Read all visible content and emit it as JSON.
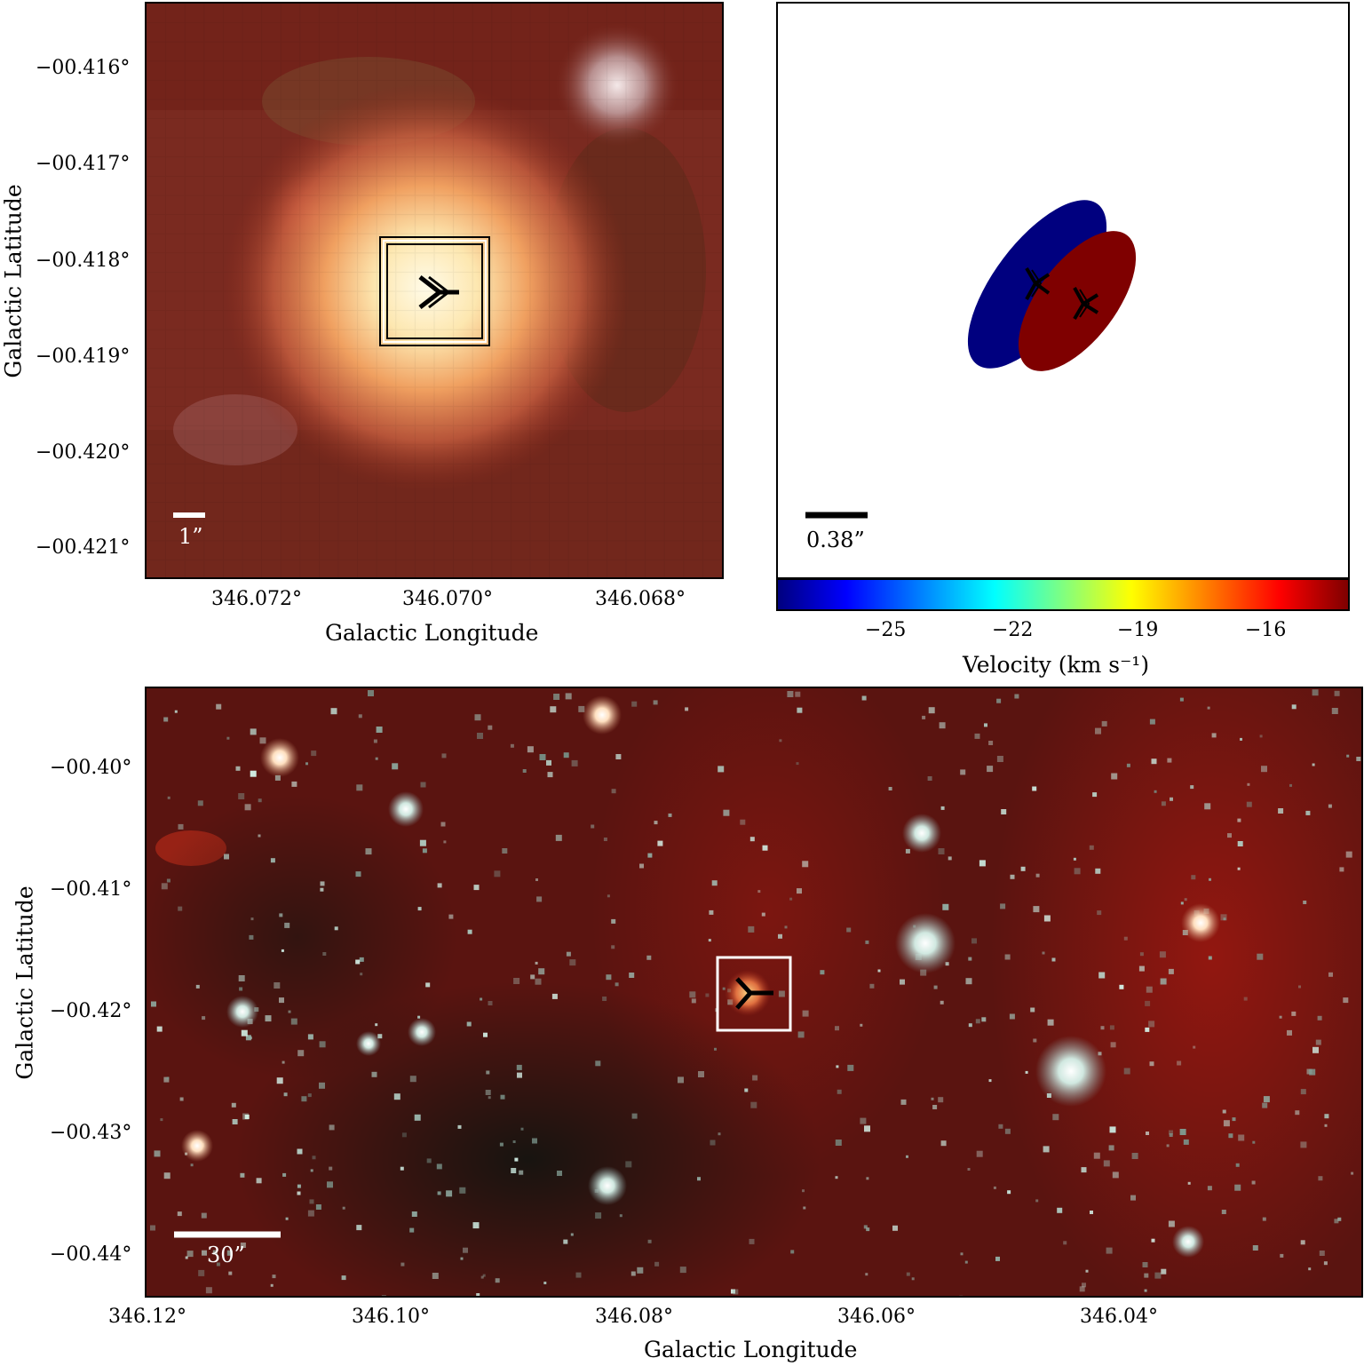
{
  "panel_a": {
    "y_ticks": [
      "−00.416°",
      "−00.417°",
      "−00.418°",
      "−00.419°",
      "−00.420°",
      "−00.421°"
    ],
    "x_ticks": [
      "346.072°",
      "346.070°",
      "346.068°"
    ],
    "xlabel": "Galactic Longitude",
    "ylabel": "Galactic Latitude",
    "scalebar": "1”"
  },
  "panel_b": {
    "scalebar": "0.38”",
    "colorbar_ticks": [
      "−25",
      "−22",
      "−19",
      "−16"
    ],
    "colorbar_label": "Velocity (km s⁻¹)",
    "ellipse_colors": [
      "#00007f",
      "#7f0000"
    ]
  },
  "panel_c": {
    "y_ticks": [
      "−00.40°",
      "−00.41°",
      "−00.42°",
      "−00.43°",
      "−00.44°"
    ],
    "x_ticks": [
      "346.12°",
      "346.10°",
      "346.08°",
      "346.06°",
      "346.04°"
    ],
    "xlabel": "Galactic Longitude",
    "ylabel": "Galactic Latitude",
    "scalebar": "30”"
  }
}
